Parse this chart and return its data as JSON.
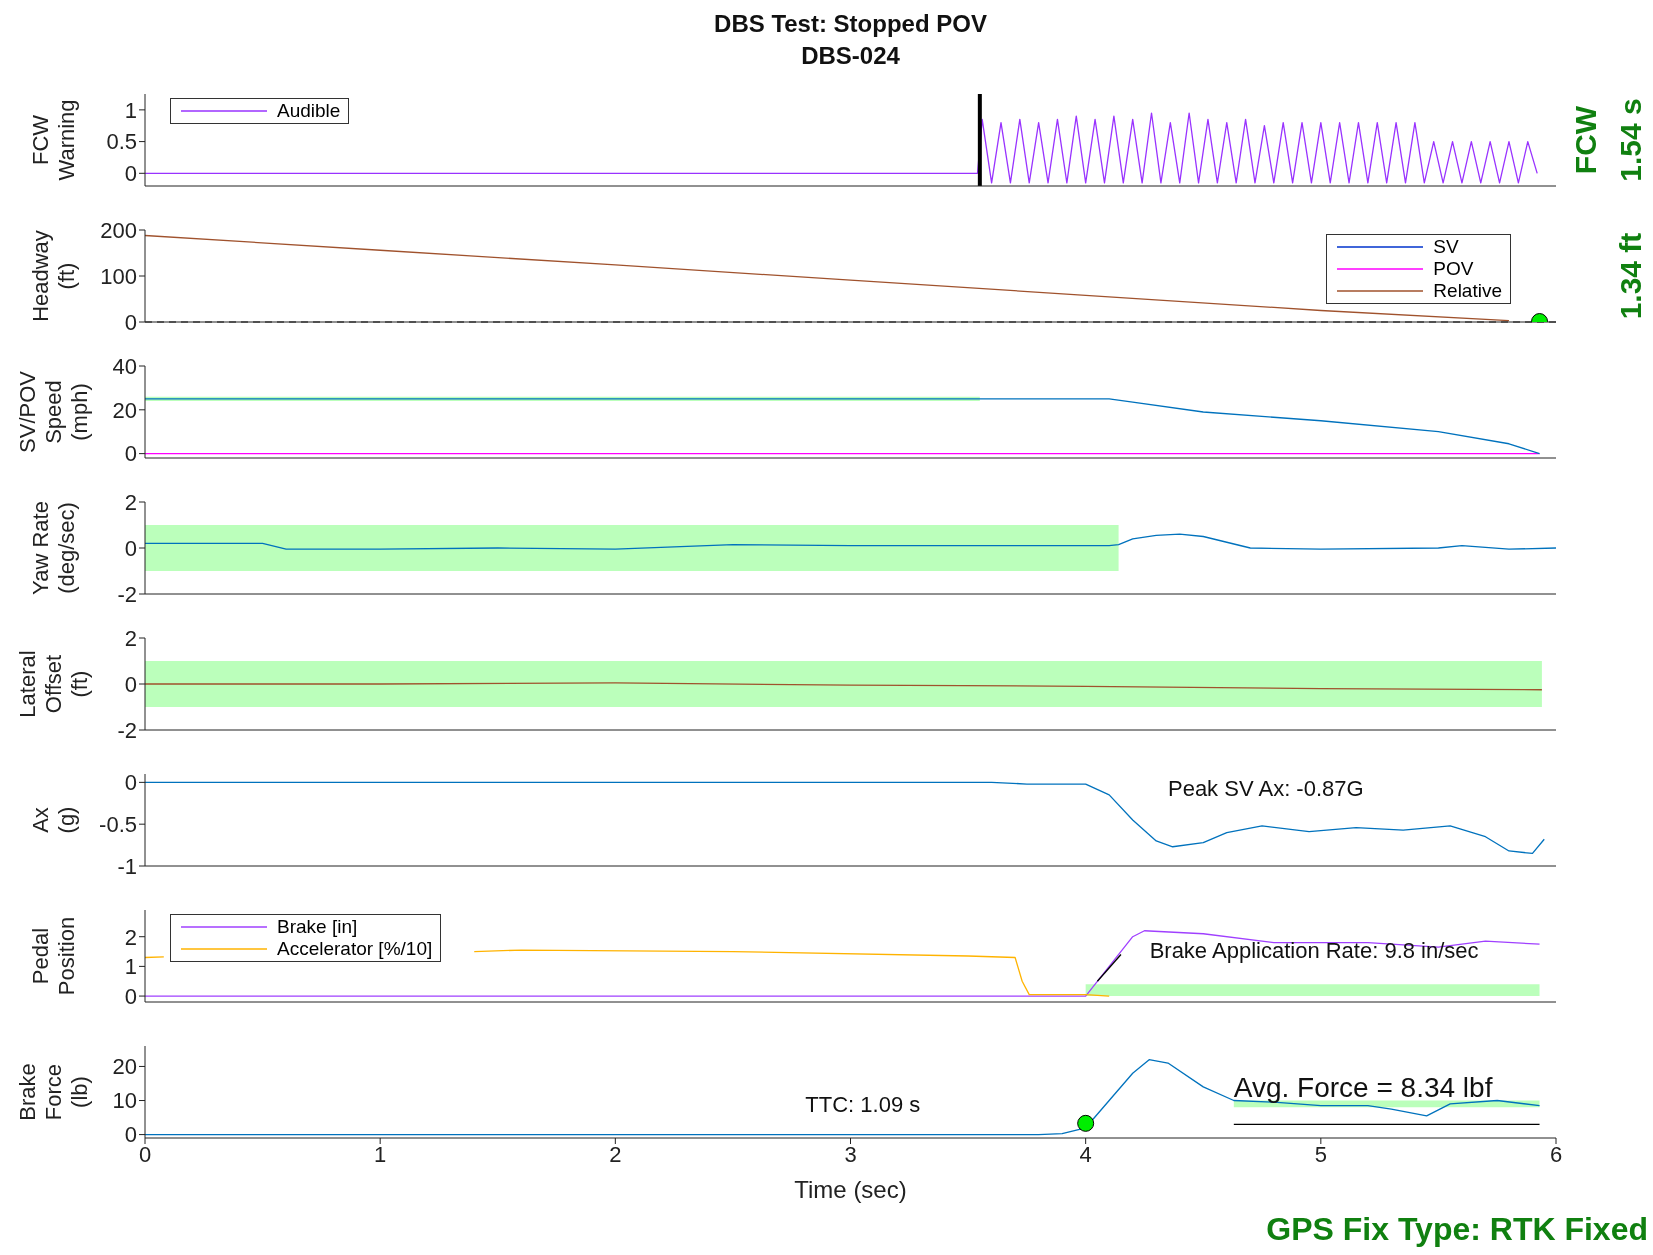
{
  "chart_data": [
    {
      "type": "line",
      "title": "DBS Test: Stopped POV",
      "subtitle": "DBS-024",
      "ylabel": "FCW\nWarning",
      "xlim": [
        0,
        6
      ],
      "xticks": [
        0,
        1,
        2,
        3,
        4,
        5,
        6
      ],
      "ylim": [
        -0.2,
        1.25
      ],
      "yticks": [
        0,
        0.5,
        1
      ],
      "tick_labels": "y",
      "legend": "top left",
      "annotations": [
        "FCW",
        "1.54 s"
      ],
      "ref_lines": [
        {
          "axis": "x",
          "value": 3.55,
          "color": "#000000"
        }
      ],
      "series": [
        {
          "name": "Audible",
          "color": "#9933ff",
          "x": [
            0,
            3.5,
            3.54,
            3.56,
            3.6,
            3.64,
            3.68,
            3.72,
            3.76,
            3.8,
            3.84,
            3.88,
            3.92,
            3.96,
            4.0,
            4.04,
            4.08,
            4.12,
            4.16,
            4.2,
            4.24,
            4.28,
            4.32,
            4.36,
            4.4,
            4.44,
            4.48,
            4.52,
            4.56,
            4.6,
            4.64,
            4.68,
            4.72,
            4.76,
            4.8,
            4.84,
            4.88,
            4.92,
            4.96,
            5.0,
            5.04,
            5.08,
            5.12,
            5.16,
            5.2,
            5.24,
            5.28,
            5.32,
            5.36,
            5.4,
            5.44,
            5.48,
            5.52,
            5.56,
            5.6,
            5.64,
            5.68,
            5.72,
            5.76,
            5.8,
            5.84,
            5.88,
            5.92
          ],
          "values": [
            0,
            0,
            0,
            0.85,
            -0.15,
            0.8,
            -0.15,
            0.85,
            -0.15,
            0.8,
            -0.15,
            0.85,
            -0.15,
            0.9,
            -0.15,
            0.85,
            -0.15,
            0.9,
            -0.15,
            0.85,
            -0.15,
            0.95,
            -0.15,
            0.8,
            -0.15,
            0.95,
            -0.15,
            0.85,
            -0.15,
            0.8,
            -0.15,
            0.85,
            -0.15,
            0.75,
            -0.15,
            0.8,
            -0.15,
            0.8,
            -0.15,
            0.8,
            -0.15,
            0.8,
            -0.15,
            0.8,
            -0.15,
            0.8,
            -0.15,
            0.8,
            -0.15,
            0.8,
            -0.15,
            0.5,
            -0.15,
            0.5,
            -0.15,
            0.5,
            -0.15,
            0.5,
            -0.15,
            0.5,
            -0.15,
            0.5,
            0
          ]
        }
      ]
    },
    {
      "type": "line",
      "ylabel": "Headway\n(ft)",
      "xlim": [
        0,
        6
      ],
      "xticks": [
        0,
        1,
        2,
        3,
        4,
        5,
        6
      ],
      "ylim": [
        0,
        200
      ],
      "yticks": [
        0,
        100,
        200
      ],
      "tick_labels": "y",
      "legend": "top right",
      "annotations": [
        "1.34 ft"
      ],
      "ref_lines": [
        {
          "axis": "y",
          "value": 0,
          "color": "#000000",
          "line_style": "dashed"
        }
      ],
      "series": [
        {
          "name": "SV",
          "color": "#0033cc"
        },
        {
          "name": "POV",
          "color": "#ff00ff"
        },
        {
          "name": "Relative",
          "color": "#a0522d",
          "x": [
            0,
            1,
            2,
            3,
            4,
            5,
            5.8
          ],
          "values": [
            188,
            156,
            124,
            91,
            58,
            25,
            3
          ]
        },
        {
          "type": "scatter",
          "color": "#00ee00",
          "x": [
            5.93
          ],
          "values": [
            1
          ]
        }
      ]
    },
    {
      "type": "line",
      "ylabel": "SV/POV\nSpeed\n(mph)",
      "xlim": [
        0,
        6
      ],
      "xticks": [
        0,
        1,
        2,
        3,
        4,
        5,
        6
      ],
      "ylim": [
        -2,
        40
      ],
      "yticks": [
        0,
        20,
        40
      ],
      "tick_labels": "y",
      "series": [
        {
          "color": "#ff00ff",
          "x": [
            0,
            5.93
          ],
          "values": [
            0,
            0
          ]
        },
        {
          "color": "#0072bd",
          "x": [
            0,
            3.55,
            4.1,
            4.2,
            4.5,
            5,
            5.5,
            5.8,
            5.93
          ],
          "values": [
            25,
            25,
            25,
            23.5,
            19,
            15,
            10,
            4.5,
            0
          ],
          "lower": [
            24,
            24,
            null,
            null,
            null,
            null,
            null,
            null,
            null
          ],
          "upper": [
            26,
            26,
            null,
            null,
            null,
            null,
            null,
            null,
            null
          ]
        }
      ]
    },
    {
      "type": "line",
      "ylabel": "Yaw Rate\n(deg/sec)",
      "xlim": [
        0,
        6
      ],
      "xticks": [
        0,
        1,
        2,
        3,
        4,
        5,
        6
      ],
      "ylim": [
        -2,
        2
      ],
      "yticks": [
        -2,
        0,
        2
      ],
      "tick_labels": "y",
      "series": [
        {
          "color": "#0072bd",
          "x": [
            0,
            0.5,
            0.6,
            1,
            1.5,
            2,
            2.5,
            3,
            3.5,
            4,
            4.1,
            4.14,
            4.2,
            4.3,
            4.4,
            4.5,
            4.6,
            4.7,
            5,
            5.5,
            5.6,
            5.8,
            6
          ],
          "values": [
            0.2,
            0.2,
            -0.05,
            -0.05,
            0,
            -0.05,
            0.15,
            0.1,
            0.1,
            0.1,
            0.1,
            0.15,
            0.4,
            0.55,
            0.6,
            0.5,
            0.25,
            0,
            -0.05,
            0,
            0.1,
            -0.05,
            0
          ],
          "lower": [
            -1,
            -1,
            -1,
            -1,
            -1,
            -1,
            -1,
            -1,
            -1,
            -1,
            -1,
            -1,
            null,
            null,
            null,
            null,
            null,
            null,
            null,
            null,
            null,
            null,
            null
          ],
          "upper": [
            1,
            1,
            1,
            1,
            1,
            1,
            1,
            1,
            1,
            1,
            1,
            1,
            null,
            null,
            null,
            null,
            null,
            null,
            null,
            null,
            null,
            null,
            null
          ]
        }
      ]
    },
    {
      "type": "line",
      "ylabel": "Lateral\nOffset\n(ft)",
      "xlim": [
        0,
        6
      ],
      "xticks": [
        0,
        1,
        2,
        3,
        4,
        5,
        6
      ],
      "ylim": [
        -2,
        2
      ],
      "yticks": [
        -2,
        0,
        2
      ],
      "tick_labels": "y",
      "series": [
        {
          "color": "#a0522d",
          "x": [
            0,
            1,
            2,
            3,
            4,
            5,
            5.94
          ],
          "values": [
            0,
            0,
            0.05,
            -0.05,
            -0.1,
            -0.2,
            -0.25
          ],
          "lower": [
            -1,
            -1,
            -1,
            -1,
            -1,
            -1,
            -1
          ],
          "upper": [
            1,
            1,
            1,
            1,
            1,
            1,
            1
          ]
        }
      ]
    },
    {
      "type": "line",
      "ylabel": "Ax\n(g)",
      "xlim": [
        0,
        6
      ],
      "xticks": [
        0,
        1,
        2,
        3,
        4,
        5,
        6
      ],
      "ylim": [
        -1,
        0.1
      ],
      "yticks": [
        -1,
        -0.5,
        0
      ],
      "tick_labels": "y",
      "annotations": [
        "Peak SV Ax: -0.87G"
      ],
      "series": [
        {
          "color": "#0072bd",
          "x": [
            0,
            3.6,
            3.75,
            4,
            4.1,
            4.2,
            4.3,
            4.37,
            4.5,
            4.6,
            4.75,
            4.95,
            5.15,
            5.35,
            5.55,
            5.7,
            5.8,
            5.9,
            5.95
          ],
          "values": [
            0,
            0,
            -0.02,
            -0.02,
            -0.15,
            -0.45,
            -0.7,
            -0.77,
            -0.72,
            -0.6,
            -0.52,
            -0.59,
            -0.54,
            -0.57,
            -0.52,
            -0.65,
            -0.82,
            -0.85,
            -0.68
          ]
        }
      ]
    },
    {
      "type": "line",
      "ylabel": "Pedal\nPosition",
      "xlim": [
        0,
        6
      ],
      "xticks": [
        0,
        1,
        2,
        3,
        4,
        5,
        6
      ],
      "ylim": [
        -0.2,
        2.9
      ],
      "yticks": [
        0,
        1,
        2
      ],
      "tick_labels": "y",
      "legend": "top left",
      "annotations": [
        "Brake Application Rate: 9.8 in/sec"
      ],
      "series": [
        {
          "name": "Brake [in]",
          "color": "#a040ff",
          "x": [
            0,
            4,
            4.1,
            4.2,
            4.25,
            4.5,
            4.8,
            5.2,
            5.5,
            5.7,
            5.93
          ],
          "values": [
            0,
            0,
            1,
            2,
            2.2,
            2.1,
            1.8,
            1.8,
            1.65,
            1.85,
            1.75
          ],
          "lower": [
            null,
            0,
            0,
            0,
            0,
            0,
            0,
            0,
            0,
            0,
            0
          ],
          "upper": [
            null,
            0.4,
            0.4,
            0.4,
            0.4,
            0.4,
            0.4,
            0.4,
            0.4,
            0.4,
            0.4
          ]
        },
        {
          "name": "Accelerator [%/10]",
          "color": "#ffb300",
          "x": [
            0,
            0.08,
            0.5,
            1,
            1.4,
            1.6,
            2.5,
            3.5,
            3.7,
            3.73,
            3.76,
            4,
            4.1
          ],
          "values": [
            1.3,
            1.32,
            null,
            null,
            1.5,
            1.55,
            1.5,
            1.35,
            1.3,
            0.5,
            0.05,
            0.05,
            0
          ]
        },
        {
          "color": "#000000",
          "x": [
            4.05,
            4.15
          ],
          "values": [
            0.5,
            1.4
          ]
        }
      ]
    },
    {
      "type": "line",
      "ylabel": "Brake\nForce\n(lb)",
      "xlabel": "Time (sec)",
      "xlim": [
        0,
        6
      ],
      "xticks": [
        0,
        1,
        2,
        3,
        4,
        5,
        6
      ],
      "ylim": [
        -1,
        26
      ],
      "yticks": [
        0,
        10,
        20
      ],
      "annotations": [
        "TTC: 1.09 s",
        {
          "text": "Avg. Force = 8.34 lbf",
          "x": 4.63,
          "y": 8.34
        },
        "GPS Fix Type: RTK Fixed"
      ],
      "series": [
        {
          "color": "#000000",
          "x": [
            4.63,
            5.93
          ],
          "values": [
            3,
            3
          ]
        },
        {
          "color": "#0072bd",
          "x": [
            0,
            3.8,
            3.9,
            4,
            4.1,
            4.2,
            4.27,
            4.35,
            4.5,
            4.63,
            4.8,
            5,
            5.2,
            5.3,
            5.45,
            5.55,
            5.75,
            5.93
          ],
          "values": [
            0,
            0,
            0.3,
            2,
            10,
            18,
            22,
            21,
            14,
            10,
            9.5,
            8.5,
            8.5,
            7.5,
            5.5,
            9,
            10,
            8.5
          ],
          "lower": [
            null,
            null,
            null,
            null,
            null,
            null,
            null,
            null,
            null,
            8,
            8,
            8,
            8,
            8,
            8,
            8,
            8,
            8
          ],
          "upper": [
            null,
            null,
            null,
            null,
            null,
            null,
            null,
            null,
            null,
            10,
            10,
            10,
            10,
            10,
            10,
            10,
            10,
            10
          ]
        },
        {
          "type": "scatter",
          "color": "#00ee00",
          "x": [
            4
          ],
          "values": [
            3.3
          ]
        }
      ]
    }
  ]
}
